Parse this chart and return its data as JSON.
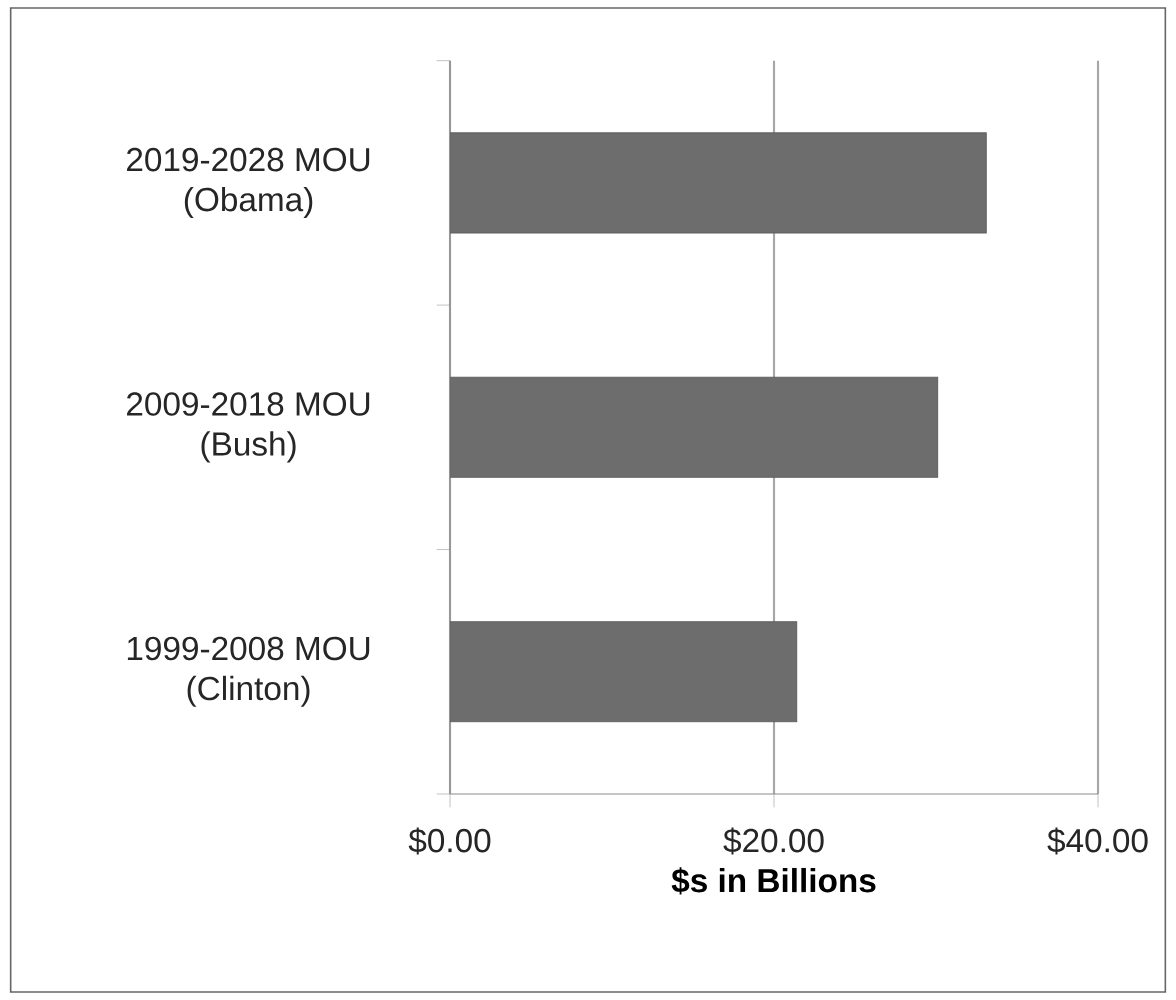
{
  "chart_data": {
    "type": "bar",
    "orientation": "horizontal",
    "xlabel": "$s in Billions",
    "categories": [
      "2019-2028 MOU (Obama)",
      "2009-2018 MOU (Bush)",
      "1999-2008 MOU (Clinton)"
    ],
    "values": [
      33.1,
      30.1,
      21.4
    ],
    "color": "#6d6d6d",
    "xlim": [
      0,
      40
    ],
    "xticks": [
      {
        "value": 0,
        "label": "$0.00"
      },
      {
        "value": 20,
        "label": "$20.00"
      },
      {
        "value": 40,
        "label": "$40.00"
      }
    ],
    "grid": "x"
  }
}
